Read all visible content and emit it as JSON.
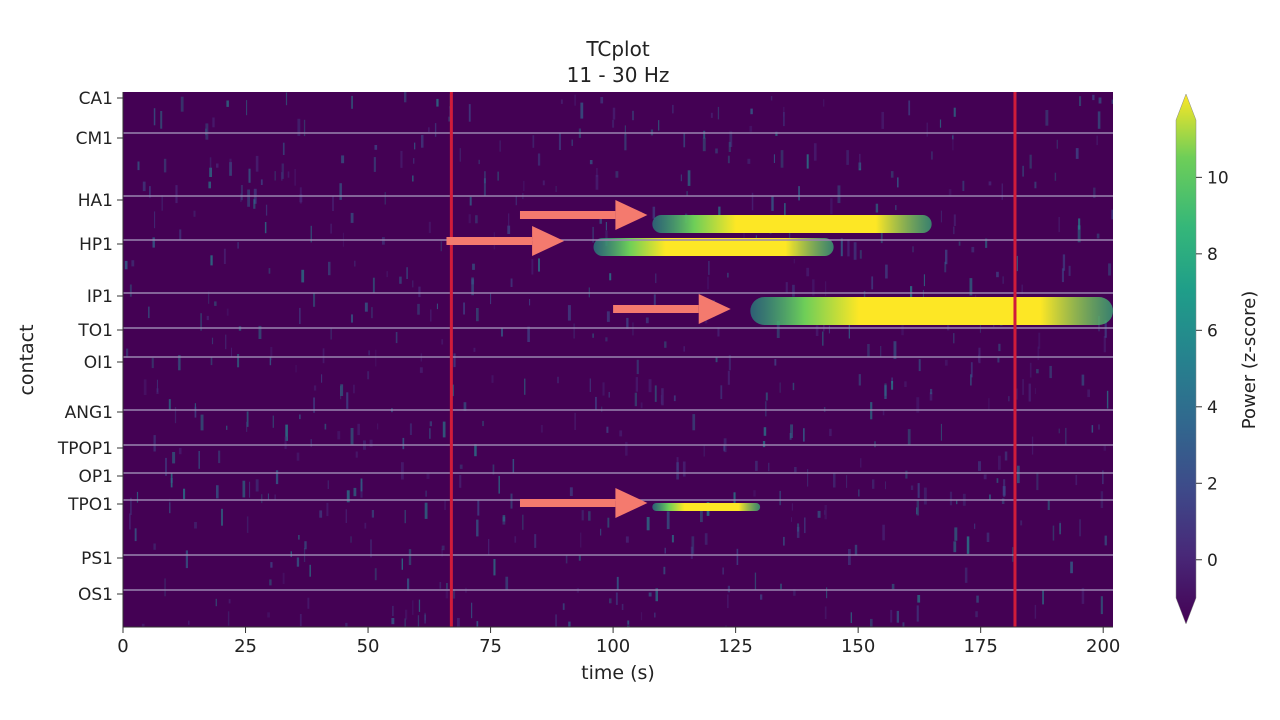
{
  "chart_data": {
    "type": "heatmap",
    "title": "TCplot",
    "subtitle": "11 - 30 Hz",
    "xlabel": "time (s)",
    "ylabel": "contact",
    "xlim": [
      0,
      202
    ],
    "xticks": [
      0,
      25,
      50,
      75,
      100,
      125,
      150,
      175,
      200
    ],
    "contacts": [
      "CA1",
      "CM1",
      "HA1",
      "HP1",
      "IP1",
      "TO1",
      "OI1",
      "ANG1",
      "TPOP1",
      "OP1",
      "TPO1",
      "PS1",
      "OS1"
    ],
    "colorbar": {
      "label": "Power (z-score)",
      "range": [
        -1,
        11.5
      ],
      "ticks": [
        0,
        2,
        4,
        6,
        8,
        10
      ],
      "colormap": "viridis",
      "extend": "both"
    },
    "event_markers_s": [
      67,
      182
    ],
    "high_power_segments": [
      {
        "contact": "HA1",
        "start_s": 108,
        "end_s": 165,
        "peak_s": 152,
        "level": "high"
      },
      {
        "contact": "HP1",
        "start_s": 96,
        "end_s": 145,
        "peak_s": 125,
        "level": "high"
      },
      {
        "contact": "IP1",
        "start_s": 128,
        "end_s": 202,
        "peak_s": 180,
        "level": "very high"
      },
      {
        "contact": "TPO1",
        "start_s": 108,
        "end_s": 130,
        "peak_s": 120,
        "level": "high"
      }
    ],
    "annotations": [
      {
        "type": "arrow",
        "contact": "HA1",
        "from_s": 81,
        "to_s": 107
      },
      {
        "type": "arrow",
        "contact": "HP1",
        "from_s": 66,
        "to_s": 90
      },
      {
        "type": "arrow",
        "contact": "IP1",
        "from_s": 100,
        "to_s": 124
      },
      {
        "type": "arrow",
        "contact": "TPO1",
        "from_s": 81,
        "to_s": 107
      }
    ]
  },
  "colors": {
    "background": "#440154",
    "separator": "#9a86b0",
    "event_line": "#d01c3a",
    "arrow": "#f47a6e"
  }
}
